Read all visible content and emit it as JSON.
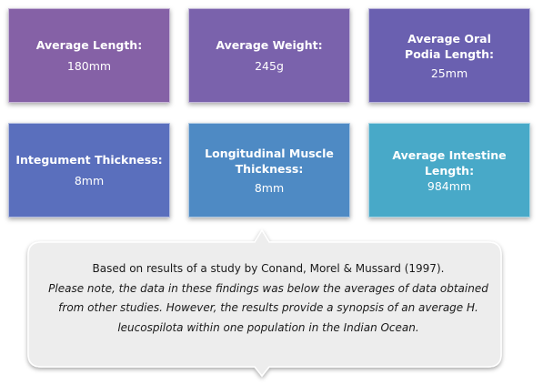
{
  "boxes": [
    {
      "title": "Average Length:",
      "value": "180mm"
    },
    {
      "title": "Average Weight:",
      "value": "245g"
    },
    {
      "title": "Average Oral Podia Length:",
      "value": "25mm"
    },
    {
      "title": "Integument Thickness:",
      "value": "8mm"
    },
    {
      "title": "Longitudinal Muscle Thickness:",
      "value": "8mm"
    },
    {
      "title": "Average Intestine Length:",
      "value": "984mm"
    }
  ],
  "colors": {
    "box1": "#8561a6",
    "box2": "#7a62ac",
    "box3": "#6a60b0",
    "box4": "#5a6fbd",
    "box5": "#4e8ac4",
    "box6": "#48a9c8",
    "callout_fill": "#ededed"
  },
  "note": {
    "line1": "Based on results of a study by Conand, Morel & Mussard (1997).",
    "italic": "Please note, the data in these findings was below the averages of data obtained from other studies.  However, the results provide a synopsis of an average H. leucospilota within one population in the Indian Ocean."
  }
}
